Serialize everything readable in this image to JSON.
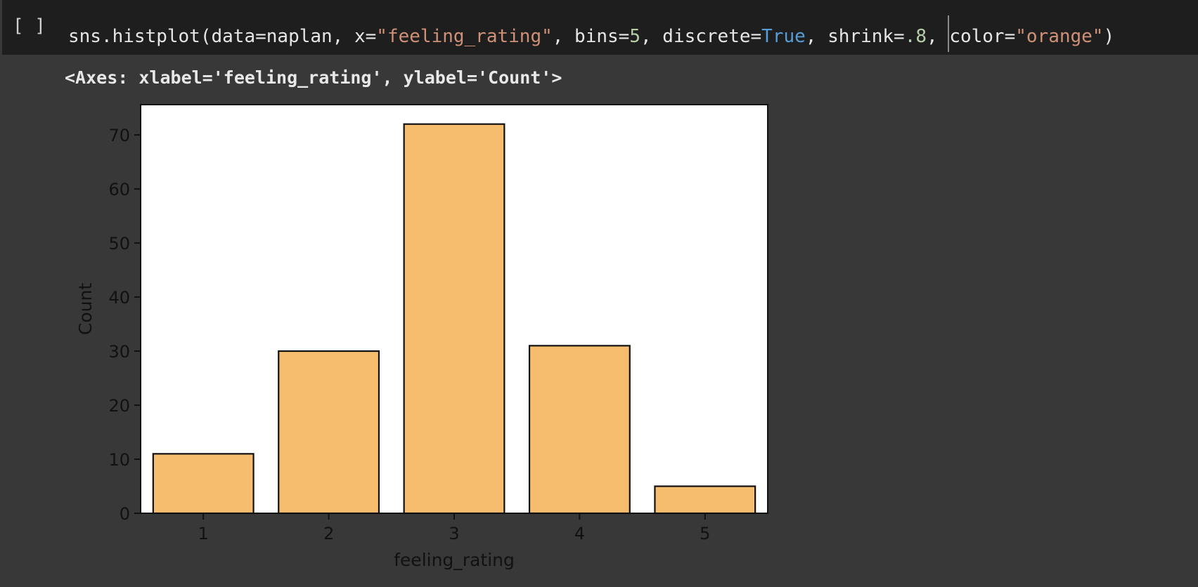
{
  "cell": {
    "run_indicator": "[ ]",
    "code_tokens": [
      {
        "text": "sns.histplot(data=naplan, x=",
        "type": "plain"
      },
      {
        "text": "\"feeling_rating\"",
        "type": "str"
      },
      {
        "text": ", bins=",
        "type": "plain"
      },
      {
        "text": "5",
        "type": "num"
      },
      {
        "text": ", discrete=",
        "type": "plain"
      },
      {
        "text": "True",
        "type": "kw"
      },
      {
        "text": ", shrink=",
        "type": "plain"
      },
      {
        "text": ".8",
        "type": "num"
      },
      {
        "text": ", ",
        "type": "plain"
      },
      {
        "text": "",
        "type": "caret"
      },
      {
        "text": "color=",
        "type": "plain"
      },
      {
        "text": "\"orange\"",
        "type": "str"
      },
      {
        "text": ")",
        "type": "plain"
      }
    ]
  },
  "output": {
    "repr": "<Axes: xlabel='feeling_rating', ylabel='Count'>"
  },
  "chart_data": {
    "type": "bar",
    "categories": [
      "1",
      "2",
      "3",
      "4",
      "5"
    ],
    "values": [
      11,
      30,
      72,
      31,
      5
    ],
    "title": "",
    "xlabel": "feeling_rating",
    "ylabel": "Count",
    "ylim": [
      0,
      75.6
    ],
    "yticks": [
      0,
      10,
      20,
      30,
      40,
      50,
      60,
      70
    ],
    "bar_color": "#f6bd6e",
    "edge_color": "#111111",
    "grid": false
  }
}
